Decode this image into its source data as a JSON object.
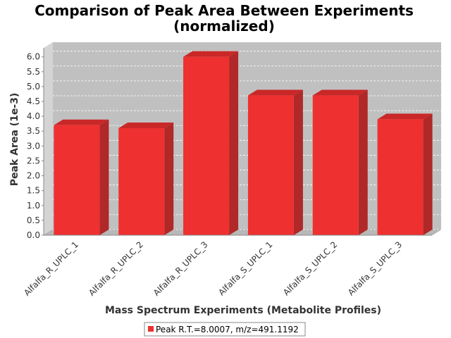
{
  "chart_data": {
    "type": "bar",
    "title_line1": "Comparison of Peak Area Between Experiments",
    "title_line2": "(normalized)",
    "xlabel": "Mass Spectrum Experiments (Metabolite Profiles)",
    "ylabel": "Peak Area (1e-3)",
    "categories": [
      "Alfalfa_R_UPLC_1",
      "Alfalfa_R_UPLC_2",
      "Alfalfa_R_UPLC_3",
      "Alfalfa_S_UPLC_1",
      "Alfalfa_S_UPLC_2",
      "Alfalfa_S_UPLC_3"
    ],
    "series": [
      {
        "name": "Peak R.T.=8.0007, m/z=491.1192",
        "values": [
          3.7,
          3.6,
          6.0,
          4.7,
          4.7,
          3.9
        ]
      }
    ],
    "ylim": [
      0,
      6.3
    ],
    "yticks": [
      "0.0",
      "0.5",
      "1.0",
      "1.5",
      "2.0",
      "2.5",
      "3.0",
      "3.5",
      "4.0",
      "4.5",
      "5.0",
      "5.5",
      "6.0"
    ],
    "grid": true,
    "legend_position": "bottom-center",
    "colors": {
      "bar_front": "#ee3030",
      "bar_top": "#c92828",
      "bar_side": "#b02828",
      "plot_background": "#c0c0c0",
      "plot_side": "#d4d4d4",
      "gridline": "#ffffff"
    }
  }
}
